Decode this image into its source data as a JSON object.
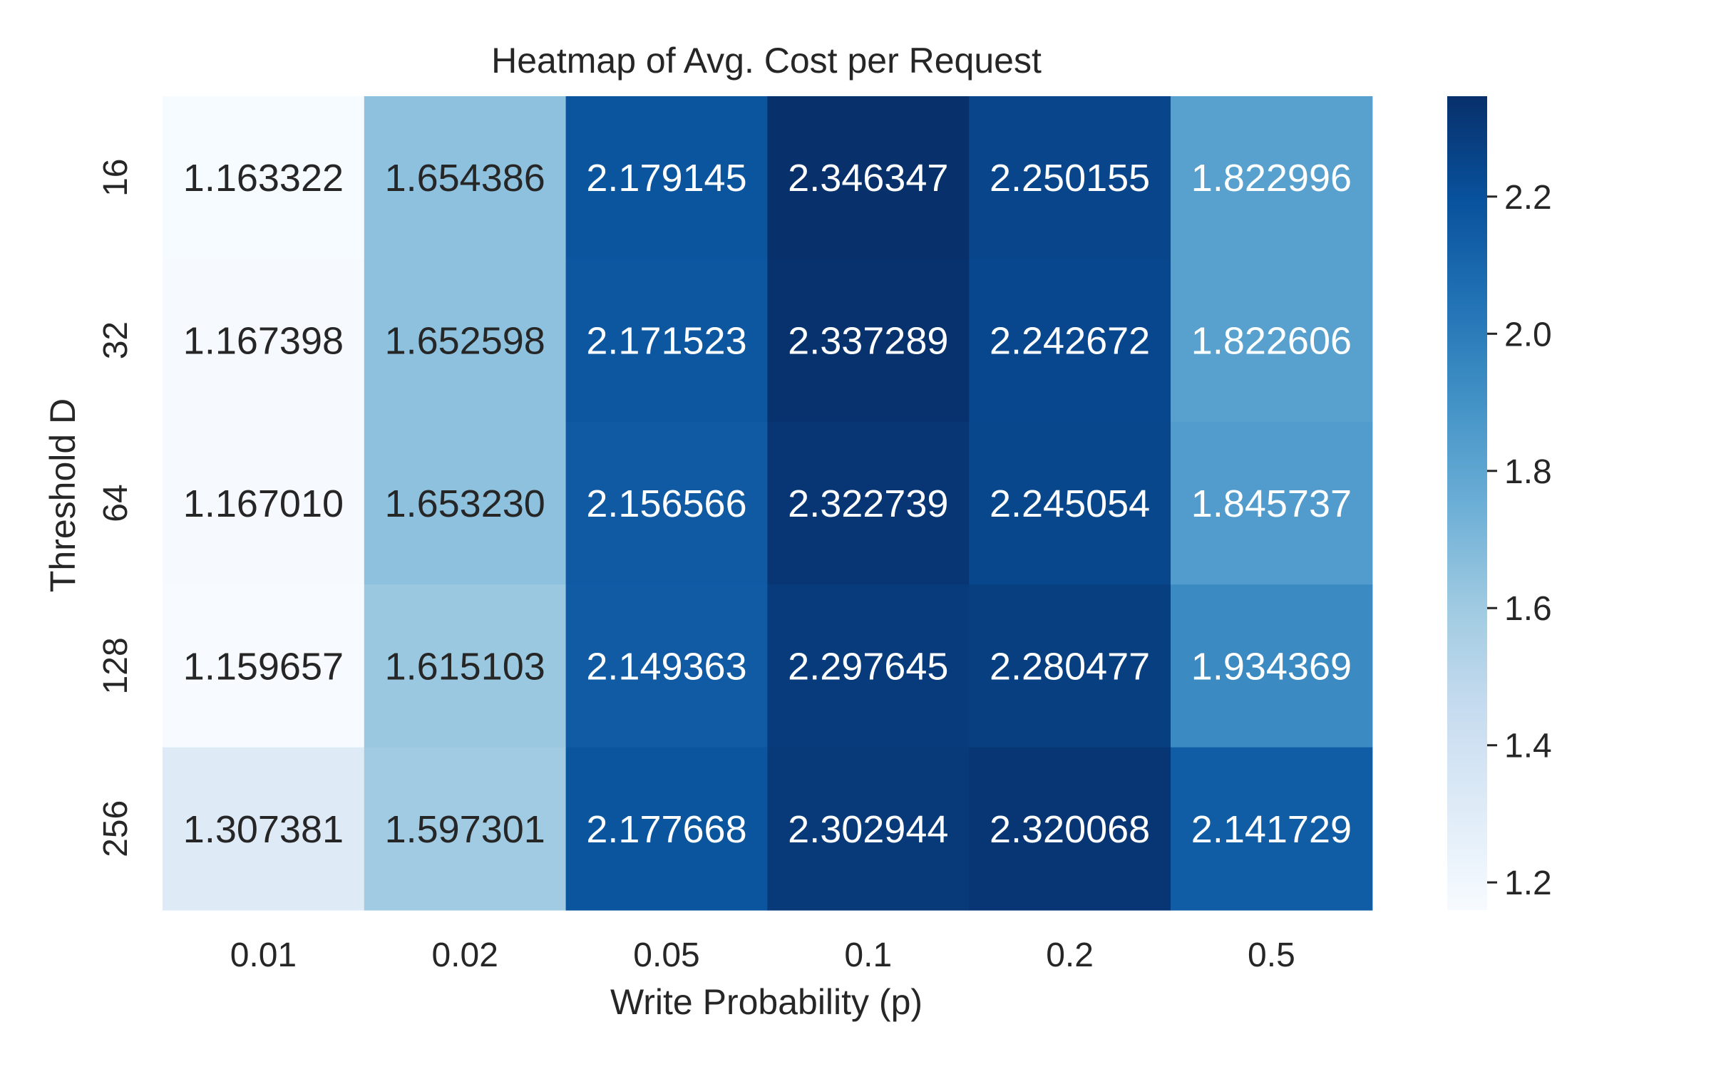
{
  "chart_data": {
    "type": "heatmap",
    "title": "Heatmap of Avg. Cost per Request",
    "xlabel": "Write Probability (p)",
    "ylabel": "Threshold D",
    "x_categories": [
      "0.01",
      "0.02",
      "0.05",
      "0.1",
      "0.2",
      "0.5"
    ],
    "y_categories": [
      "16",
      "32",
      "64",
      "128",
      "256"
    ],
    "values": [
      [
        1.163322,
        1.654386,
        2.179145,
        2.346347,
        2.250155,
        1.822996
      ],
      [
        1.167398,
        1.652598,
        2.171523,
        2.337289,
        2.242672,
        1.822606
      ],
      [
        1.16701,
        1.65323,
        2.156566,
        2.322739,
        2.245054,
        1.845737
      ],
      [
        1.159657,
        1.615103,
        2.149363,
        2.297645,
        2.280477,
        1.934369
      ],
      [
        1.307381,
        1.597301,
        2.177668,
        2.302944,
        2.320068,
        2.141729
      ]
    ],
    "value_format": "%.6f",
    "colormap": "Blues",
    "colorbar": {
      "vmin": 1.159657,
      "vmax": 2.346347,
      "ticks": [
        1.2,
        1.4,
        1.6,
        1.8,
        2.0,
        2.2
      ],
      "tick_labels": [
        "1.2",
        "1.4",
        "1.6",
        "1.8",
        "2.0",
        "2.2"
      ]
    }
  }
}
